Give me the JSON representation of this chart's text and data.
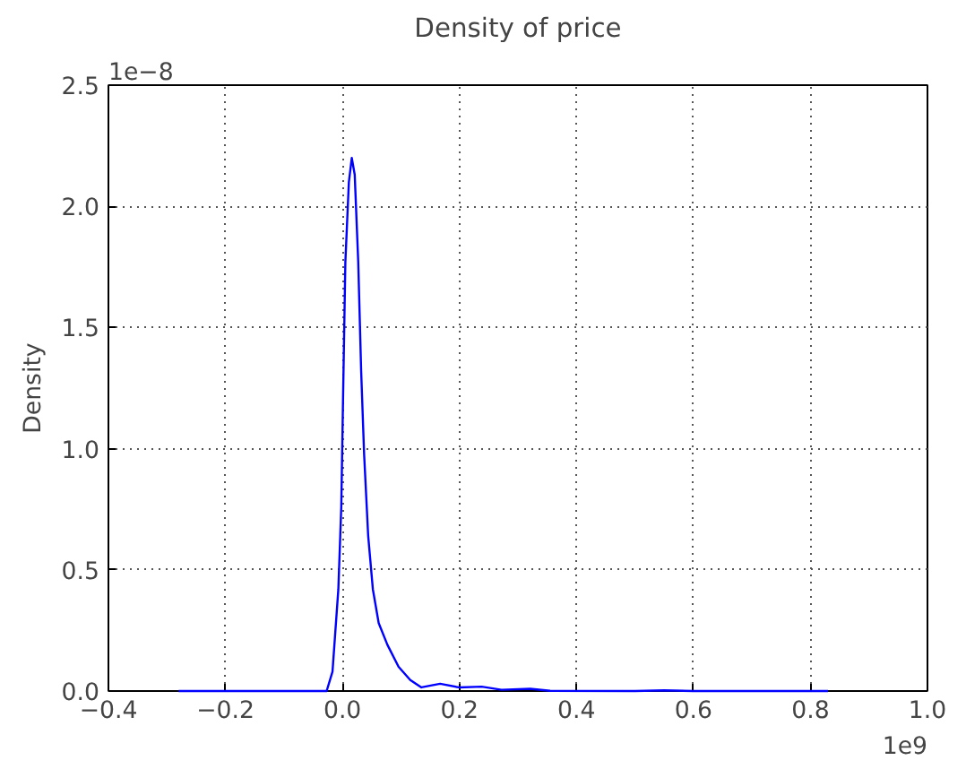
{
  "chart_data": {
    "type": "line",
    "title": "Density of price",
    "ylabel": "Density",
    "annotations": [
      "1e−8",
      "1e9"
    ],
    "x": [
      -0.28,
      -0.1,
      -0.027,
      -0.017,
      -0.007,
      -0.002,
      0.001,
      0.005,
      0.011,
      0.016,
      0.021,
      0.027,
      0.032,
      0.037,
      0.044,
      0.052,
      0.062,
      0.077,
      0.096,
      0.116,
      0.135,
      0.167,
      0.199,
      0.238,
      0.272,
      0.321,
      0.355,
      0.5,
      0.55,
      0.6,
      0.83
    ],
    "series": [
      {
        "color": "#0000ff",
        "values": [
          0,
          0,
          0,
          0.08,
          0.42,
          0.76,
          1.2,
          1.77,
          2.1,
          2.2,
          2.13,
          1.77,
          1.32,
          0.98,
          0.64,
          0.42,
          0.28,
          0.19,
          0.1,
          0.045,
          0.015,
          0.03,
          0.015,
          0.018,
          0.005,
          0.009,
          0.001,
          0,
          0.003,
          0,
          0
        ]
      }
    ],
    "xlim": [
      -0.4,
      1.0
    ],
    "ylim": [
      0,
      2.5
    ],
    "xticks": [
      {
        "value": -0.4,
        "label": "−0.4"
      },
      {
        "value": -0.2,
        "label": "−0.2"
      },
      {
        "value": 0,
        "label": "0.0"
      },
      0.2,
      0.4,
      0.6,
      0.8,
      {
        "value": 1,
        "label": "1.0"
      }
    ],
    "yticks": [
      {
        "value": 0,
        "label": "0.0"
      },
      0.5,
      {
        "value": 1,
        "label": "1.0"
      },
      1.5,
      {
        "value": 2,
        "label": "2.0"
      },
      2.5
    ],
    "grid": true,
    "line_style": "solid"
  }
}
